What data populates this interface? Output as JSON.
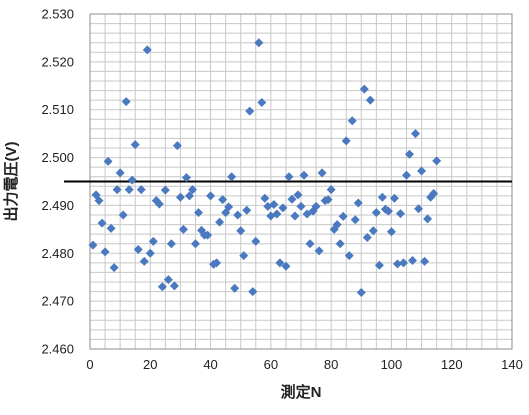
{
  "chart_data": {
    "type": "scatter",
    "title": "",
    "xlabel": "測定N",
    "ylabel": "出力電圧(V)",
    "xlim": [
      0,
      140
    ],
    "ylim": [
      2.46,
      2.53
    ],
    "xticks": [
      "0",
      "20",
      "40",
      "60",
      "80",
      "100",
      "120",
      "140"
    ],
    "yticks": [
      "2.460",
      "2.470",
      "2.480",
      "2.490",
      "2.500",
      "2.510",
      "2.520",
      "2.530"
    ],
    "grid": true,
    "minor_grid": true,
    "legend": "none",
    "marker_color": "#4a79c0",
    "reference_line": {
      "y": 2.495,
      "color": "#000000"
    },
    "series": [
      {
        "points": [
          [
            1,
            2.4817
          ],
          [
            2,
            2.4922
          ],
          [
            3,
            2.491
          ],
          [
            4,
            2.4863
          ],
          [
            5,
            2.4803
          ],
          [
            6,
            2.4992
          ],
          [
            7,
            2.4852
          ],
          [
            8,
            2.477
          ],
          [
            9,
            2.4933
          ],
          [
            10,
            2.4968
          ],
          [
            11,
            2.488
          ],
          [
            12,
            2.5117
          ],
          [
            13,
            2.4933
          ],
          [
            14,
            2.4953
          ],
          [
            15,
            2.5027
          ],
          [
            16,
            2.4808
          ],
          [
            17,
            2.4933
          ],
          [
            18,
            2.4783
          ],
          [
            19,
            2.5225
          ],
          [
            20,
            2.48
          ],
          [
            21,
            2.4825
          ],
          [
            22,
            2.491
          ],
          [
            23,
            2.4903
          ],
          [
            24,
            2.473
          ],
          [
            25,
            2.4932
          ],
          [
            26,
            2.4745
          ],
          [
            27,
            2.482
          ],
          [
            28,
            2.4732
          ],
          [
            29,
            2.5025
          ],
          [
            30,
            2.4917
          ],
          [
            31,
            2.485
          ],
          [
            32,
            2.4958
          ],
          [
            33,
            2.492
          ],
          [
            34,
            2.4933
          ],
          [
            35,
            2.482
          ],
          [
            36,
            2.4885
          ],
          [
            37,
            2.4848
          ],
          [
            38,
            2.4838
          ],
          [
            39,
            2.4838
          ],
          [
            40,
            2.492
          ],
          [
            41,
            2.4777
          ],
          [
            42,
            2.478
          ],
          [
            43,
            2.4865
          ],
          [
            44,
            2.4912
          ],
          [
            45,
            2.4885
          ],
          [
            46,
            2.4897
          ],
          [
            47,
            2.496
          ],
          [
            48,
            2.4727
          ],
          [
            49,
            2.488
          ],
          [
            50,
            2.4847
          ],
          [
            51,
            2.4795
          ],
          [
            52,
            2.489
          ],
          [
            53,
            2.5097
          ],
          [
            54,
            2.472
          ],
          [
            55,
            2.4825
          ],
          [
            56,
            2.524
          ],
          [
            57,
            2.5115
          ],
          [
            58,
            2.4915
          ],
          [
            59,
            2.4898
          ],
          [
            60,
            2.4878
          ],
          [
            61,
            2.4902
          ],
          [
            62,
            2.4882
          ],
          [
            63,
            2.478
          ],
          [
            64,
            2.4895
          ],
          [
            65,
            2.4773
          ],
          [
            66,
            2.496
          ],
          [
            67,
            2.4913
          ],
          [
            68,
            2.4878
          ],
          [
            69,
            2.4922
          ],
          [
            70,
            2.4898
          ],
          [
            71,
            2.4963
          ],
          [
            72,
            2.4882
          ],
          [
            73,
            2.482
          ],
          [
            74,
            2.4888
          ],
          [
            75,
            2.4898
          ],
          [
            76,
            2.4805
          ],
          [
            77,
            2.4968
          ],
          [
            78,
            2.491
          ],
          [
            79,
            2.4912
          ],
          [
            80,
            2.4933
          ],
          [
            81,
            2.485
          ],
          [
            82,
            2.486
          ],
          [
            83,
            2.482
          ],
          [
            84,
            2.4877
          ],
          [
            85,
            2.5035
          ],
          [
            86,
            2.4795
          ],
          [
            87,
            2.5077
          ],
          [
            88,
            2.487
          ],
          [
            89,
            2.4905
          ],
          [
            90,
            2.4718
          ],
          [
            91,
            2.5143
          ],
          [
            92,
            2.4833
          ],
          [
            93,
            2.512
          ],
          [
            94,
            2.4847
          ],
          [
            95,
            2.4885
          ],
          [
            96,
            2.4775
          ],
          [
            97,
            2.4917
          ],
          [
            98,
            2.4892
          ],
          [
            99,
            2.4888
          ],
          [
            100,
            2.4845
          ],
          [
            101,
            2.4915
          ],
          [
            102,
            2.4778
          ],
          [
            103,
            2.4883
          ],
          [
            104,
            2.478
          ],
          [
            105,
            2.4963
          ],
          [
            106,
            2.5007
          ],
          [
            107,
            2.4785
          ],
          [
            108,
            2.505
          ],
          [
            109,
            2.4893
          ],
          [
            110,
            2.4972
          ],
          [
            111,
            2.4783
          ],
          [
            112,
            2.4872
          ],
          [
            113,
            2.4917
          ],
          [
            114,
            2.4925
          ],
          [
            115,
            2.4993
          ]
        ]
      }
    ]
  }
}
